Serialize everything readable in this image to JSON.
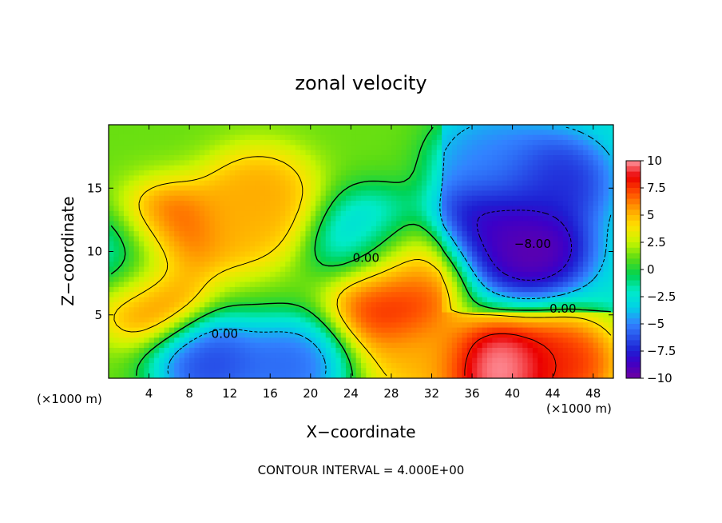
{
  "chart_data": {
    "type": "heatmap",
    "title": "zonal velocity",
    "xlabel": "X−coordinate",
    "ylabel": "Z−coordinate",
    "x_unit_left": "(×1000 m)",
    "x_unit_right": "(×1000 m)",
    "footer": "CONTOUR INTERVAL = 4.000E+00",
    "xlim": [
      0,
      50
    ],
    "ylim": [
      0,
      20
    ],
    "x_ticks": [
      4,
      8,
      12,
      16,
      20,
      24,
      28,
      32,
      36,
      40,
      44,
      48
    ],
    "y_ticks": [
      5,
      10,
      15
    ],
    "colorbar": {
      "min": -10,
      "max": 10,
      "ticks": [
        "10",
        "7.5",
        "5",
        "2.5",
        "0",
        "−2.5",
        "−5",
        "−7.5",
        "−10"
      ],
      "tick_values": [
        10,
        7.5,
        5,
        2.5,
        0,
        -2.5,
        -5,
        -7.5,
        -10
      ]
    },
    "contour_labels": [
      {
        "text": "0.00",
        "x": 25.5,
        "z": 9.5
      },
      {
        "text": "0.00",
        "x": 11.5,
        "z": 3.5
      },
      {
        "text": "0.00",
        "x": 45,
        "z": 5.5
      },
      {
        "text": "−8.00",
        "x": 42,
        "z": 10.6
      }
    ],
    "features": [
      {
        "x": 6,
        "z": 11.5,
        "value": 8
      },
      {
        "x": 4,
        "z": 6.5,
        "value": 7
      },
      {
        "x": 15,
        "z": 14.5,
        "value": 5.5
      },
      {
        "x": 13,
        "z": 12,
        "value": 5
      },
      {
        "x": 28,
        "z": 5.8,
        "value": 8.5
      },
      {
        "x": 30,
        "z": 9,
        "value": 6.5
      },
      {
        "x": 38.5,
        "z": 0.8,
        "value": 11
      },
      {
        "x": 45,
        "z": 1.2,
        "value": 8
      },
      {
        "x": 31,
        "z": 1.5,
        "value": 5
      },
      {
        "x": 42,
        "z": 10.2,
        "value": -10
      },
      {
        "x": 37,
        "z": 11.8,
        "value": -9
      },
      {
        "x": 44,
        "z": 15.5,
        "value": -7.5
      },
      {
        "x": 38,
        "z": 17,
        "value": -5
      },
      {
        "x": 26,
        "z": 11,
        "value": -4
      },
      {
        "x": 10,
        "z": 1.2,
        "value": -7
      },
      {
        "x": 18,
        "z": 1,
        "value": -6
      },
      {
        "x": 1.5,
        "z": 9.5,
        "value": -4
      }
    ]
  }
}
